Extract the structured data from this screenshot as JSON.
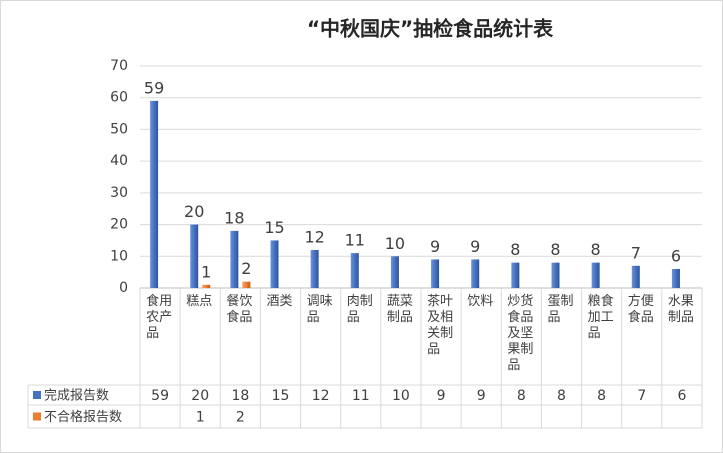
{
  "chart_data": {
    "type": "bar",
    "title": "“中秋国庆”抽检食品统计表",
    "categories": [
      "食用农产品",
      "糕点",
      "餐饮食品",
      "酒类",
      "调味品",
      "肉制品",
      "蔬菜制品",
      "茶叶及相关制品",
      "饮料",
      "炒货食品及坚果制品",
      "蛋制品",
      "粮食加工品",
      "方便食品",
      "水果制品"
    ],
    "series": [
      {
        "name": "完成报告数",
        "color": "#4472c4",
        "values": [
          59,
          20,
          18,
          15,
          12,
          11,
          10,
          9,
          9,
          8,
          8,
          8,
          7,
          6
        ]
      },
      {
        "name": "不合格报告数",
        "color": "#ed7d31",
        "values": [
          null,
          1,
          2,
          null,
          null,
          null,
          null,
          null,
          null,
          null,
          null,
          null,
          null,
          null
        ]
      }
    ],
    "ylim": [
      0,
      70
    ],
    "yticks": [
      0,
      10,
      20,
      30,
      40,
      50,
      60,
      70
    ],
    "grid": true
  }
}
